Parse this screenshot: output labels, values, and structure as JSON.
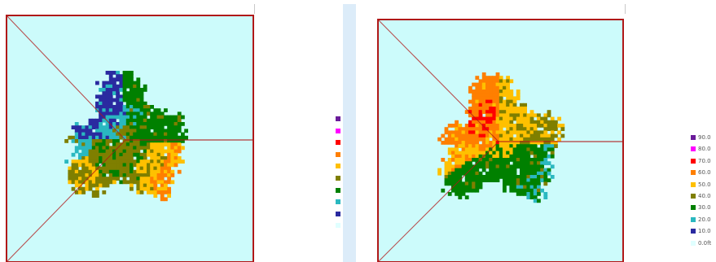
{
  "chart_data": [
    {
      "type": "heatmap",
      "title": "",
      "panel": "left",
      "dominant_sectors": [
        {
          "sector": "upper-left",
          "band": "10.0",
          "description": "dark blue lobe"
        },
        {
          "sector": "upper-right",
          "band": "30.0",
          "description": "green"
        },
        {
          "sector": "center",
          "band": "40.0",
          "description": "olive core"
        },
        {
          "sector": "lower-right",
          "band": "50.0",
          "description": "yellow with orange tip"
        }
      ]
    },
    {
      "type": "heatmap",
      "title": "",
      "panel": "right",
      "dominant_sectors": [
        {
          "sector": "upper-left",
          "band": "60.0",
          "description": "orange with red patch"
        },
        {
          "sector": "upper-right",
          "band": "50.0",
          "description": "yellow and olive"
        },
        {
          "sector": "lower",
          "band": "30.0",
          "description": "green with cyan fringe"
        }
      ]
    }
  ],
  "legend": {
    "colors": [
      "#6a1b9a",
      "#ff00ff",
      "#ff0000",
      "#ff7f00",
      "#ffc000",
      "#7f7f00",
      "#008000",
      "#2ab8c0",
      "#2a2aa0",
      "#e0ffff"
    ],
    "right_labels": [
      "90.0",
      "80.0",
      "70.0",
      "60.0",
      "50.0",
      "40.0",
      "30.0",
      "20.0",
      "10.0",
      "0.0ft"
    ]
  },
  "background_color": "#ccfbfb",
  "frame_color": "#b01818"
}
